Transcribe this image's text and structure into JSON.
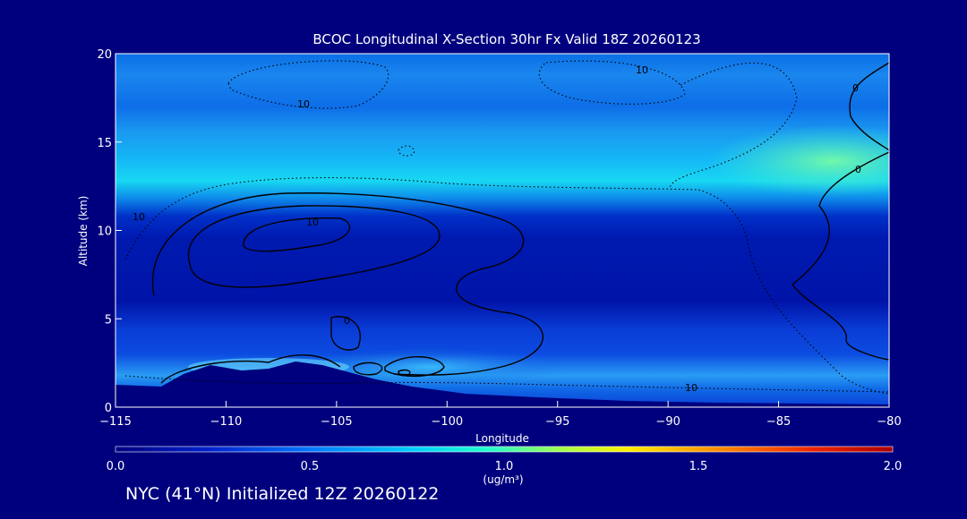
{
  "chart_data": {
    "type": "heatmap",
    "title": "BCOC Longitudinal X-Section 30hr  Fx Valid 18Z 20260123",
    "xlabel": "Longitude",
    "ylabel": "Altitude (km)",
    "xlim": [
      -115,
      -80
    ],
    "ylim": [
      0,
      20
    ],
    "x_ticks": [
      -115,
      -110,
      -105,
      -100,
      -95,
      -90,
      -85,
      -80
    ],
    "x_tick_labels": [
      "−115",
      "−110",
      "−105",
      "−100",
      "−95",
      "−90",
      "−85",
      "−80"
    ],
    "y_ticks": [
      0,
      5,
      10,
      15,
      20
    ],
    "y_tick_labels": [
      "0",
      "5",
      "10",
      "15",
      "20"
    ],
    "colorbar": {
      "min": 0.0,
      "max": 2.0,
      "ticks": [
        0.0,
        0.5,
        1.0,
        1.5,
        2.0
      ],
      "tick_labels": [
        "0.0",
        "0.5",
        "1.0",
        "1.5",
        "2.0"
      ],
      "units": "(ug/m³)",
      "colors": [
        "#00007f",
        "#0022cc",
        "#0077ff",
        "#00ccff",
        "#22ffcc",
        "#aaff44",
        "#ffee00",
        "#ff8800",
        "#ee2200",
        "#aa0000"
      ]
    },
    "contour_labels": [
      "10",
      "10",
      "10",
      "10",
      "0",
      "0",
      "0",
      "10"
    ],
    "approx_concentration_profile": [
      {
        "altitude_km": 19,
        "value": 0.45
      },
      {
        "altitude_km": 17,
        "value": 0.35
      },
      {
        "altitude_km": 15,
        "value": 0.55
      },
      {
        "altitude_km": 13,
        "value": 0.6
      },
      {
        "altitude_km": 11,
        "value": 0.25
      },
      {
        "altitude_km": 8,
        "value": 0.12
      },
      {
        "altitude_km": 4,
        "value": 0.2
      },
      {
        "altitude_km": 2,
        "value": 0.6
      },
      {
        "altitude_km": 1,
        "value": 0.35
      }
    ]
  },
  "footer": {
    "label": "NYC (41°N) Initialized 12Z 20260122"
  }
}
